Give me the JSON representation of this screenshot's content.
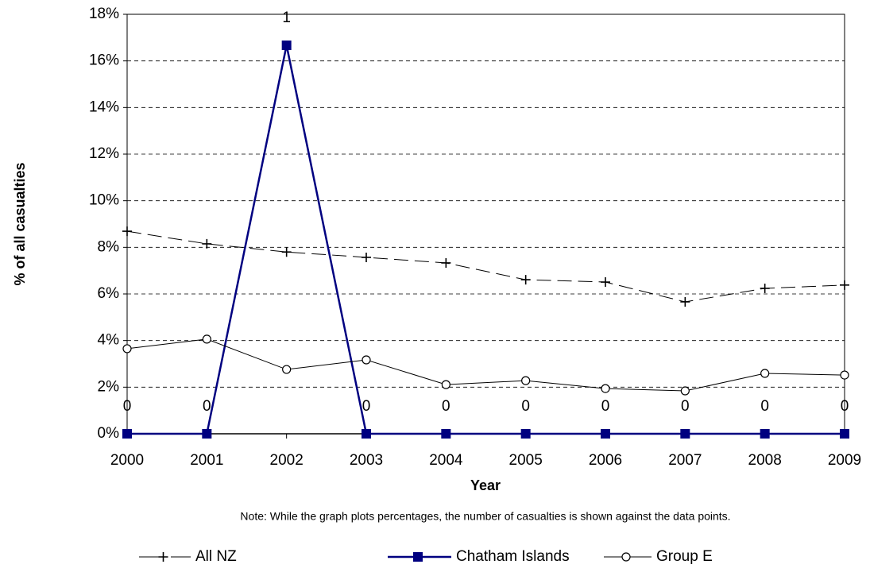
{
  "chart_data": {
    "type": "line",
    "y_axis_label": "% of all casualties",
    "x_axis_label": "Year",
    "note": "Note:  While the graph plots percentages, the number of casualties is shown against the data points.",
    "categories": [
      "2000",
      "2001",
      "2002",
      "2003",
      "2004",
      "2005",
      "2006",
      "2007",
      "2008",
      "2009"
    ],
    "ylim": [
      0,
      18
    ],
    "yticks": [
      {
        "value": 0,
        "label": "0%"
      },
      {
        "value": 2,
        "label": "2%"
      },
      {
        "value": 4,
        "label": "4%"
      },
      {
        "value": 6,
        "label": "6%"
      },
      {
        "value": 8,
        "label": "8%"
      },
      {
        "value": 10,
        "label": "10%"
      },
      {
        "value": 12,
        "label": "12%"
      },
      {
        "value": 14,
        "label": "14%"
      },
      {
        "value": 16,
        "label": "16%"
      },
      {
        "value": 18,
        "label": "18%"
      }
    ],
    "grid": true,
    "legend": "bottom",
    "series": [
      {
        "name": "All NZ",
        "color": "#000000",
        "marker": "plus",
        "dashed": true,
        "values": [
          8.69,
          8.15,
          7.8,
          7.57,
          7.33,
          6.61,
          6.51,
          5.66,
          6.24,
          6.38
        ]
      },
      {
        "name": "Chatham Islands",
        "color": "#000080",
        "marker": "square",
        "dashed": false,
        "values": [
          0,
          0,
          16.67,
          0,
          0,
          0,
          0,
          0,
          0,
          0
        ],
        "counts": [
          0,
          0,
          1,
          0,
          0,
          0,
          0,
          0,
          0,
          0
        ]
      },
      {
        "name": "Group E",
        "color": "#000000",
        "marker": "circle",
        "dashed": false,
        "values": [
          3.65,
          4.06,
          2.76,
          3.17,
          2.11,
          2.28,
          1.94,
          1.84,
          2.59,
          2.52
        ]
      }
    ]
  }
}
